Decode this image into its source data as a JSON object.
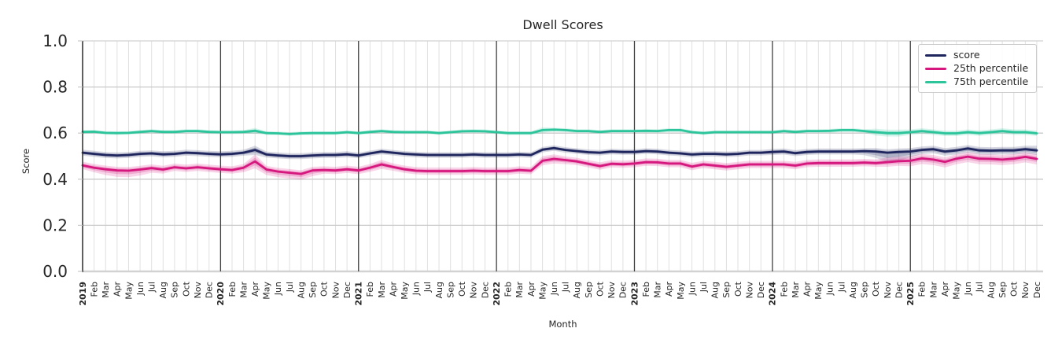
{
  "chart_data": {
    "type": "line",
    "title": "Dwell Scores",
    "xlabel": "Month",
    "ylabel": "Score",
    "ylim": [
      0.0,
      1.0
    ],
    "y_ticks": [
      0.0,
      0.2,
      0.4,
      0.6,
      0.8,
      1.0
    ],
    "grid": true,
    "legend_position": "upper right",
    "x_tick_labels": [
      "2019",
      "Feb",
      "Mar",
      "Apr",
      "May",
      "Jun",
      "Jul",
      "Aug",
      "Sep",
      "Oct",
      "Nov",
      "Dec",
      "2020",
      "Feb",
      "Mar",
      "Apr",
      "May",
      "Jun",
      "Jul",
      "Aug",
      "Sep",
      "Oct",
      "Nov",
      "Dec",
      "2021",
      "Feb",
      "Mar",
      "Apr",
      "May",
      "Jun",
      "Jul",
      "Aug",
      "Sep",
      "Oct",
      "Nov",
      "Dec",
      "2022",
      "Feb",
      "Mar",
      "Apr",
      "May",
      "Jun",
      "Jul",
      "Aug",
      "Sep",
      "Oct",
      "Nov",
      "Dec",
      "2023",
      "Feb",
      "Mar",
      "Apr",
      "May",
      "Jun",
      "Jul",
      "Aug",
      "Sep",
      "Oct",
      "Nov",
      "Dec",
      "2024",
      "Feb",
      "Mar",
      "Apr",
      "May",
      "Jun",
      "Jul",
      "Aug",
      "Sep",
      "Oct",
      "Nov",
      "Dec",
      "2025",
      "Feb",
      "Mar",
      "Apr",
      "May",
      "Jun",
      "Jul",
      "Aug",
      "Sep",
      "Oct",
      "Nov",
      "Dec"
    ],
    "year_line_indices": [
      12,
      24,
      36,
      48,
      60,
      72
    ],
    "series": [
      {
        "name": "score",
        "color": "#1f265e",
        "values": [
          0.515,
          0.51,
          0.505,
          0.503,
          0.505,
          0.51,
          0.512,
          0.508,
          0.51,
          0.515,
          0.513,
          0.51,
          0.508,
          0.51,
          0.515,
          0.527,
          0.507,
          0.503,
          0.5,
          0.5,
          0.503,
          0.505,
          0.505,
          0.508,
          0.503,
          0.512,
          0.52,
          0.515,
          0.51,
          0.507,
          0.505,
          0.505,
          0.505,
          0.505,
          0.507,
          0.505,
          0.505,
          0.505,
          0.507,
          0.505,
          0.528,
          0.535,
          0.527,
          0.522,
          0.517,
          0.515,
          0.52,
          0.518,
          0.518,
          0.522,
          0.52,
          0.515,
          0.512,
          0.507,
          0.51,
          0.51,
          0.508,
          0.51,
          0.515,
          0.515,
          0.518,
          0.52,
          0.513,
          0.518,
          0.52,
          0.52,
          0.52,
          0.52,
          0.522,
          0.52,
          0.515,
          0.518,
          0.52,
          0.527,
          0.53,
          0.52,
          0.525,
          0.533,
          0.525,
          0.524,
          0.525,
          0.525,
          0.53,
          0.525
        ],
        "band_lower": [
          0.502,
          0.497,
          0.492,
          0.49,
          0.492,
          0.497,
          0.499,
          0.495,
          0.497,
          0.502,
          0.5,
          0.497,
          0.495,
          0.497,
          0.502,
          0.505,
          0.494,
          0.49,
          0.487,
          0.487,
          0.49,
          0.492,
          0.492,
          0.495,
          0.491,
          0.5,
          0.508,
          0.503,
          0.498,
          0.495,
          0.493,
          0.493,
          0.493,
          0.493,
          0.495,
          0.493,
          0.493,
          0.493,
          0.495,
          0.493,
          0.516,
          0.523,
          0.515,
          0.51,
          0.505,
          0.503,
          0.508,
          0.506,
          0.506,
          0.51,
          0.508,
          0.503,
          0.5,
          0.495,
          0.498,
          0.498,
          0.496,
          0.498,
          0.503,
          0.503,
          0.505,
          0.507,
          0.5,
          0.505,
          0.507,
          0.507,
          0.507,
          0.507,
          0.504,
          0.492,
          0.473,
          0.48,
          0.495,
          0.509,
          0.512,
          0.502,
          0.507,
          0.515,
          0.507,
          0.506,
          0.507,
          0.507,
          0.512,
          0.505
        ],
        "band_upper": [
          0.528,
          0.523,
          0.518,
          0.516,
          0.518,
          0.523,
          0.525,
          0.521,
          0.523,
          0.528,
          0.526,
          0.523,
          0.521,
          0.523,
          0.528,
          0.545,
          0.52,
          0.516,
          0.513,
          0.513,
          0.516,
          0.518,
          0.518,
          0.521,
          0.515,
          0.524,
          0.532,
          0.527,
          0.522,
          0.519,
          0.517,
          0.517,
          0.517,
          0.517,
          0.519,
          0.517,
          0.517,
          0.517,
          0.519,
          0.517,
          0.54,
          0.547,
          0.539,
          0.534,
          0.529,
          0.527,
          0.532,
          0.53,
          0.53,
          0.534,
          0.532,
          0.527,
          0.524,
          0.519,
          0.522,
          0.522,
          0.52,
          0.522,
          0.527,
          0.527,
          0.531,
          0.533,
          0.526,
          0.531,
          0.533,
          0.533,
          0.533,
          0.533,
          0.535,
          0.535,
          0.53,
          0.533,
          0.535,
          0.542,
          0.545,
          0.535,
          0.54,
          0.548,
          0.54,
          0.539,
          0.54,
          0.54,
          0.545,
          0.545
        ]
      },
      {
        "name": "25th percentile",
        "color": "#d6177e",
        "values": [
          0.46,
          0.45,
          0.443,
          0.438,
          0.437,
          0.442,
          0.448,
          0.442,
          0.452,
          0.447,
          0.452,
          0.447,
          0.443,
          0.44,
          0.45,
          0.477,
          0.442,
          0.433,
          0.428,
          0.423,
          0.438,
          0.44,
          0.438,
          0.443,
          0.438,
          0.45,
          0.464,
          0.453,
          0.443,
          0.437,
          0.435,
          0.435,
          0.435,
          0.435,
          0.437,
          0.435,
          0.435,
          0.435,
          0.44,
          0.437,
          0.48,
          0.488,
          0.483,
          0.477,
          0.467,
          0.457,
          0.467,
          0.465,
          0.468,
          0.474,
          0.473,
          0.468,
          0.468,
          0.455,
          0.464,
          0.459,
          0.454,
          0.459,
          0.464,
          0.464,
          0.464,
          0.464,
          0.459,
          0.468,
          0.47,
          0.47,
          0.47,
          0.47,
          0.472,
          0.47,
          0.474,
          0.478,
          0.48,
          0.49,
          0.485,
          0.475,
          0.489,
          0.498,
          0.489,
          0.488,
          0.485,
          0.489,
          0.497,
          0.488
        ],
        "band_lower": [
          0.444,
          0.43,
          0.418,
          0.41,
          0.409,
          0.416,
          0.428,
          0.424,
          0.436,
          0.431,
          0.436,
          0.431,
          0.427,
          0.424,
          0.43,
          0.447,
          0.418,
          0.409,
          0.403,
          0.398,
          0.413,
          0.424,
          0.422,
          0.427,
          0.422,
          0.432,
          0.444,
          0.437,
          0.427,
          0.421,
          0.419,
          0.419,
          0.419,
          0.419,
          0.421,
          0.419,
          0.419,
          0.419,
          0.424,
          0.421,
          0.46,
          0.468,
          0.465,
          0.461,
          0.451,
          0.441,
          0.451,
          0.449,
          0.452,
          0.458,
          0.457,
          0.452,
          0.452,
          0.439,
          0.448,
          0.443,
          0.438,
          0.443,
          0.448,
          0.448,
          0.448,
          0.448,
          0.443,
          0.452,
          0.454,
          0.454,
          0.454,
          0.454,
          0.456,
          0.454,
          0.454,
          0.458,
          0.456,
          0.466,
          0.461,
          0.451,
          0.465,
          0.474,
          0.465,
          0.464,
          0.461,
          0.465,
          0.473,
          0.464
        ],
        "band_upper": [
          0.476,
          0.466,
          0.459,
          0.454,
          0.453,
          0.458,
          0.464,
          0.458,
          0.468,
          0.463,
          0.468,
          0.463,
          0.459,
          0.456,
          0.466,
          0.507,
          0.458,
          0.449,
          0.444,
          0.439,
          0.454,
          0.456,
          0.454,
          0.459,
          0.454,
          0.466,
          0.484,
          0.469,
          0.459,
          0.453,
          0.451,
          0.451,
          0.451,
          0.451,
          0.453,
          0.451,
          0.451,
          0.451,
          0.456,
          0.453,
          0.5,
          0.508,
          0.499,
          0.493,
          0.483,
          0.473,
          0.483,
          0.481,
          0.484,
          0.49,
          0.489,
          0.484,
          0.484,
          0.471,
          0.48,
          0.475,
          0.47,
          0.475,
          0.48,
          0.48,
          0.48,
          0.48,
          0.475,
          0.484,
          0.486,
          0.486,
          0.486,
          0.486,
          0.488,
          0.486,
          0.494,
          0.498,
          0.5,
          0.51,
          0.505,
          0.495,
          0.509,
          0.518,
          0.509,
          0.508,
          0.505,
          0.509,
          0.517,
          0.508
        ]
      },
      {
        "name": "75th percentile",
        "color": "#2cc59b",
        "values": [
          0.605,
          0.606,
          0.601,
          0.6,
          0.601,
          0.605,
          0.609,
          0.605,
          0.605,
          0.609,
          0.609,
          0.605,
          0.604,
          0.604,
          0.605,
          0.61,
          0.6,
          0.599,
          0.596,
          0.599,
          0.6,
          0.6,
          0.6,
          0.604,
          0.6,
          0.605,
          0.609,
          0.605,
          0.604,
          0.604,
          0.604,
          0.6,
          0.604,
          0.608,
          0.609,
          0.608,
          0.604,
          0.6,
          0.6,
          0.6,
          0.613,
          0.615,
          0.613,
          0.609,
          0.609,
          0.605,
          0.609,
          0.609,
          0.609,
          0.61,
          0.609,
          0.613,
          0.613,
          0.604,
          0.6,
          0.604,
          0.604,
          0.604,
          0.604,
          0.604,
          0.604,
          0.609,
          0.605,
          0.609,
          0.609,
          0.61,
          0.613,
          0.613,
          0.609,
          0.604,
          0.6,
          0.6,
          0.604,
          0.609,
          0.604,
          0.599,
          0.599,
          0.604,
          0.6,
          0.604,
          0.609,
          0.604,
          0.604,
          0.599
        ],
        "band_lower": [
          0.597,
          0.598,
          0.593,
          0.592,
          0.593,
          0.597,
          0.601,
          0.597,
          0.597,
          0.601,
          0.601,
          0.597,
          0.596,
          0.596,
          0.597,
          0.598,
          0.592,
          0.591,
          0.588,
          0.591,
          0.592,
          0.592,
          0.592,
          0.596,
          0.592,
          0.597,
          0.601,
          0.597,
          0.596,
          0.596,
          0.596,
          0.592,
          0.596,
          0.6,
          0.601,
          0.6,
          0.596,
          0.592,
          0.592,
          0.592,
          0.601,
          0.607,
          0.605,
          0.601,
          0.601,
          0.597,
          0.601,
          0.601,
          0.601,
          0.602,
          0.601,
          0.605,
          0.605,
          0.596,
          0.592,
          0.596,
          0.596,
          0.596,
          0.596,
          0.596,
          0.596,
          0.601,
          0.597,
          0.601,
          0.601,
          0.602,
          0.605,
          0.605,
          0.601,
          0.589,
          0.585,
          0.585,
          0.592,
          0.597,
          0.592,
          0.587,
          0.587,
          0.592,
          0.588,
          0.592,
          0.597,
          0.592,
          0.592,
          0.587
        ],
        "band_upper": [
          0.613,
          0.614,
          0.609,
          0.608,
          0.609,
          0.613,
          0.617,
          0.613,
          0.613,
          0.617,
          0.617,
          0.613,
          0.612,
          0.612,
          0.613,
          0.622,
          0.608,
          0.607,
          0.604,
          0.607,
          0.608,
          0.608,
          0.608,
          0.612,
          0.608,
          0.613,
          0.617,
          0.613,
          0.612,
          0.612,
          0.612,
          0.608,
          0.612,
          0.616,
          0.617,
          0.616,
          0.612,
          0.608,
          0.608,
          0.608,
          0.625,
          0.623,
          0.621,
          0.617,
          0.617,
          0.613,
          0.617,
          0.617,
          0.617,
          0.618,
          0.617,
          0.621,
          0.621,
          0.612,
          0.608,
          0.612,
          0.612,
          0.612,
          0.612,
          0.612,
          0.612,
          0.617,
          0.613,
          0.617,
          0.617,
          0.618,
          0.621,
          0.621,
          0.617,
          0.619,
          0.615,
          0.615,
          0.616,
          0.621,
          0.616,
          0.611,
          0.611,
          0.616,
          0.612,
          0.616,
          0.621,
          0.616,
          0.616,
          0.611
        ]
      }
    ]
  },
  "colors": {
    "grid_minor": "#e0e0e0",
    "grid_major": "#c9c9c9",
    "year_line": "#404040",
    "spine_dark": "#2b2b2b",
    "spine_light": "#d2d2d2",
    "text": "#262626"
  }
}
